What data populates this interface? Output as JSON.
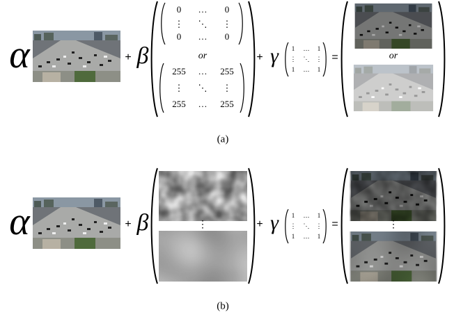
{
  "panels": [
    {
      "label": "(a)",
      "alpha": "α",
      "plus1": "+",
      "beta": "β",
      "matrix_top": [
        [
          "0",
          "…",
          "0"
        ],
        [
          "⋮",
          "⋱",
          "⋮"
        ],
        [
          "0",
          "…",
          "0"
        ]
      ],
      "or": "or",
      "matrix_bottom": [
        [
          "255",
          "…",
          "255"
        ],
        [
          "⋮",
          "⋱",
          "⋮"
        ],
        [
          "255",
          "…",
          "255"
        ]
      ],
      "plus2": "+",
      "gamma": "γ",
      "ones": [
        [
          "1",
          "…",
          "1"
        ],
        [
          "⋮",
          "⋱",
          "⋮"
        ],
        [
          "1",
          "…",
          "1"
        ]
      ],
      "equals": "=",
      "result_or": "or"
    },
    {
      "label": "(b)",
      "alpha": "α",
      "plus1": "+",
      "beta": "β",
      "separator": "⋮",
      "plus2": "+",
      "gamma": "γ",
      "ones": [
        [
          "1",
          "…",
          "1"
        ],
        [
          "⋮",
          "⋱",
          "⋮"
        ],
        [
          "1",
          "…",
          "1"
        ]
      ],
      "equals": "=",
      "result_separator": "⋮"
    }
  ]
}
